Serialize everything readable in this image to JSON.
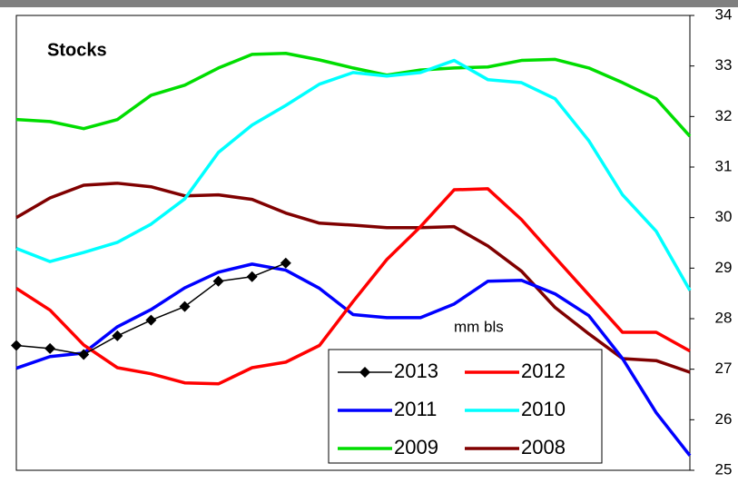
{
  "chart_data": {
    "type": "line",
    "title": "Stocks",
    "annotation": "mm  bls",
    "categories": [
      null,
      null,
      null,
      null,
      null,
      null,
      null,
      null,
      null,
      null,
      null,
      null,
      null,
      null,
      null,
      null,
      null,
      null,
      null,
      null,
      null
    ],
    "ylim": [
      25,
      34
    ],
    "yticks": [
      25,
      26,
      27,
      28,
      29,
      30,
      31,
      32,
      33,
      34
    ],
    "y_axis_side": "right",
    "legend_position": "lower center",
    "series": [
      {
        "name": "2013",
        "color": "#000000",
        "marker": "diamond",
        "values": [
          27.47,
          27.41,
          27.29,
          27.66,
          27.97,
          28.24,
          28.74,
          28.83,
          29.1,
          null,
          null,
          null,
          null,
          null,
          null,
          null,
          null,
          null,
          null,
          null,
          null
        ]
      },
      {
        "name": "2012",
        "color": "#ff0000",
        "values": [
          28.6,
          28.17,
          27.48,
          27.03,
          26.91,
          26.73,
          26.71,
          27.03,
          27.14,
          27.47,
          28.34,
          29.17,
          29.82,
          30.55,
          30.57,
          29.96,
          29.21,
          28.47,
          27.73,
          27.73,
          27.36
        ]
      },
      {
        "name": "2011",
        "color": "#0000ff",
        "values": [
          27.02,
          27.25,
          27.32,
          27.84,
          28.18,
          28.61,
          28.92,
          29.08,
          28.96,
          28.6,
          28.08,
          28.02,
          28.02,
          28.29,
          28.74,
          28.76,
          28.49,
          28.06,
          27.21,
          26.14,
          25.29
        ]
      },
      {
        "name": "2010",
        "color": "#00ffff",
        "values": [
          29.39,
          29.13,
          29.31,
          29.51,
          29.87,
          30.37,
          31.29,
          31.83,
          32.22,
          32.64,
          32.87,
          32.8,
          32.87,
          33.11,
          32.73,
          32.67,
          32.35,
          31.52,
          30.45,
          29.73,
          28.56
        ]
      },
      {
        "name": "2009",
        "color": "#00dd00",
        "values": [
          31.94,
          31.9,
          31.76,
          31.94,
          32.42,
          32.62,
          32.96,
          33.23,
          33.25,
          33.12,
          32.96,
          32.82,
          32.92,
          32.96,
          32.98,
          33.11,
          33.13,
          32.96,
          32.67,
          32.35,
          31.61
        ]
      },
      {
        "name": "2008",
        "color": "#800000",
        "values": [
          30.0,
          30.39,
          30.64,
          30.68,
          30.61,
          30.43,
          30.45,
          30.36,
          30.09,
          29.89,
          29.85,
          29.8,
          29.8,
          29.82,
          29.44,
          28.94,
          28.22,
          27.7,
          27.21,
          27.17,
          26.94
        ]
      }
    ]
  }
}
